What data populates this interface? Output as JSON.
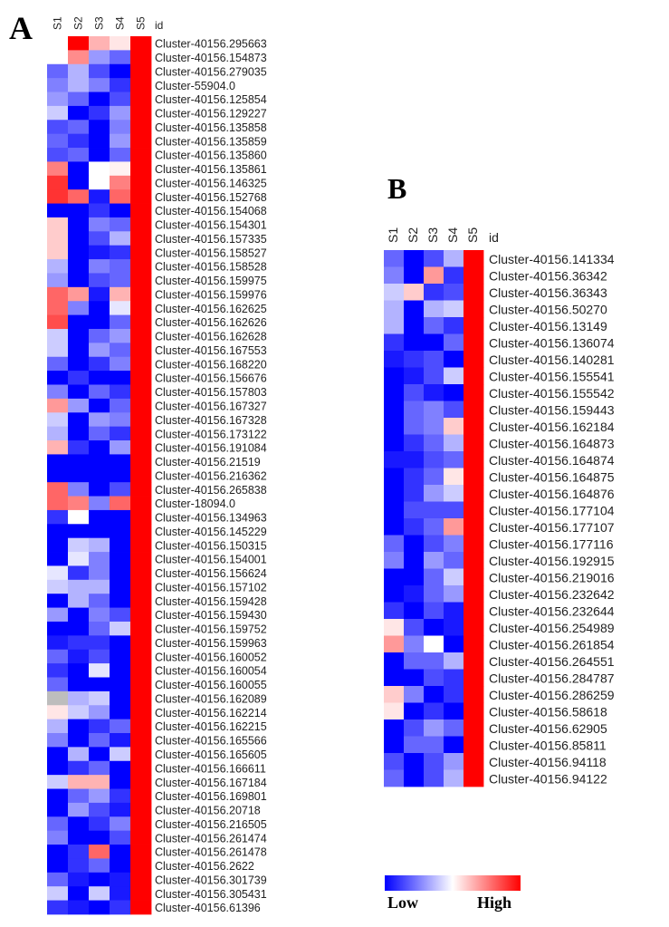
{
  "panels": [
    {
      "letter": "A",
      "columns": [
        "S1",
        "S2",
        "S3",
        "S4",
        "S5"
      ],
      "id_header": "id",
      "rows": [
        {
          "id": "Cluster-40156.295663",
          "values": [
            0.0,
            1.0,
            0.3,
            0.1,
            1.0
          ]
        },
        {
          "id": "Cluster-40156.154873",
          "values": [
            0.0,
            0.45,
            -0.4,
            -0.6,
            1.0
          ]
        },
        {
          "id": "Cluster-40156.279035",
          "values": [
            -0.6,
            -0.3,
            -0.7,
            -1.0,
            1.0
          ]
        },
        {
          "id": "Cluster-55904.0",
          "values": [
            -0.5,
            -0.3,
            -0.5,
            -0.8,
            1.0
          ]
        },
        {
          "id": "Cluster-40156.125854",
          "values": [
            -0.4,
            -0.6,
            -1.0,
            -0.7,
            1.0
          ]
        },
        {
          "id": "Cluster-40156.129227",
          "values": [
            -0.2,
            -1.0,
            -0.8,
            -0.4,
            1.0
          ]
        },
        {
          "id": "Cluster-40156.135858",
          "values": [
            -0.7,
            -0.6,
            -1.0,
            -0.5,
            1.0
          ]
        },
        {
          "id": "Cluster-40156.135859",
          "values": [
            -0.6,
            -0.8,
            -1.0,
            -0.4,
            1.0
          ]
        },
        {
          "id": "Cluster-40156.135860",
          "values": [
            -0.7,
            -0.6,
            -1.0,
            -0.6,
            1.0
          ]
        },
        {
          "id": "Cluster-40156.135861",
          "values": [
            0.5,
            -1.0,
            0.0,
            0.05,
            1.0
          ]
        },
        {
          "id": "Cluster-40156.146325",
          "values": [
            0.8,
            -1.0,
            0.0,
            0.5,
            1.0
          ]
        },
        {
          "id": "Cluster-40156.152768",
          "values": [
            0.8,
            0.6,
            -0.9,
            0.6,
            1.0
          ]
        },
        {
          "id": "Cluster-40156.154068",
          "values": [
            -1.0,
            -1.0,
            -0.8,
            -1.0,
            1.0
          ]
        },
        {
          "id": "Cluster-40156.154301",
          "values": [
            0.2,
            -1.0,
            -0.5,
            -0.6,
            1.0
          ]
        },
        {
          "id": "Cluster-40156.157335",
          "values": [
            0.2,
            -1.0,
            -0.7,
            -0.3,
            1.0
          ]
        },
        {
          "id": "Cluster-40156.158527",
          "values": [
            0.2,
            -1.0,
            -0.9,
            -0.8,
            1.0
          ]
        },
        {
          "id": "Cluster-40156.158528",
          "values": [
            -0.3,
            -1.0,
            -0.5,
            -0.6,
            1.0
          ]
        },
        {
          "id": "Cluster-40156.159975",
          "values": [
            -0.4,
            -1.0,
            -0.7,
            -0.6,
            1.0
          ]
        },
        {
          "id": "Cluster-40156.159976",
          "values": [
            0.6,
            0.4,
            -0.9,
            0.3,
            1.0
          ]
        },
        {
          "id": "Cluster-40156.162625",
          "values": [
            0.6,
            -0.5,
            -1.0,
            -0.1,
            1.0
          ]
        },
        {
          "id": "Cluster-40156.162626",
          "values": [
            0.7,
            -1.0,
            -1.0,
            -0.6,
            1.0
          ]
        },
        {
          "id": "Cluster-40156.162628",
          "values": [
            -0.2,
            -1.0,
            -0.6,
            -0.4,
            1.0
          ]
        },
        {
          "id": "Cluster-40156.167553",
          "values": [
            -0.2,
            -1.0,
            -0.4,
            -0.6,
            1.0
          ]
        },
        {
          "id": "Cluster-40156.168220",
          "values": [
            -0.6,
            -1.0,
            -0.8,
            -0.5,
            1.0
          ]
        },
        {
          "id": "Cluster-40156.156676",
          "values": [
            -1.0,
            -0.8,
            -1.0,
            -1.0,
            1.0
          ]
        },
        {
          "id": "Cluster-40156.157803",
          "values": [
            -0.5,
            -1.0,
            -0.6,
            -0.8,
            1.0
          ]
        },
        {
          "id": "Cluster-40156.167327",
          "values": [
            0.4,
            -0.4,
            -1.0,
            -0.6,
            1.0
          ]
        },
        {
          "id": "Cluster-40156.167328",
          "values": [
            -0.2,
            -1.0,
            -0.4,
            -0.5,
            1.0
          ]
        },
        {
          "id": "Cluster-40156.173122",
          "values": [
            -0.3,
            -1.0,
            -0.6,
            -0.8,
            1.0
          ]
        },
        {
          "id": "Cluster-40156.191084",
          "values": [
            0.3,
            -0.8,
            -1.0,
            -0.4,
            1.0
          ]
        },
        {
          "id": "Cluster-40156.21519",
          "values": [
            -1.0,
            -1.0,
            -1.0,
            -1.0,
            1.0
          ]
        },
        {
          "id": "Cluster-40156.216362",
          "values": [
            -1.0,
            -1.0,
            -1.0,
            -1.0,
            1.0
          ]
        },
        {
          "id": "Cluster-40156.265838",
          "values": [
            0.6,
            -0.5,
            -1.0,
            -0.7,
            1.0
          ]
        },
        {
          "id": "Cluster-18094.0",
          "values": [
            0.6,
            0.5,
            -0.5,
            0.6,
            1.0
          ]
        },
        {
          "id": "Cluster-40156.134963",
          "values": [
            -0.8,
            0.0,
            -1.0,
            -1.0,
            1.0
          ]
        },
        {
          "id": "Cluster-40156.145229",
          "values": [
            -1.0,
            -1.0,
            -1.0,
            -1.0,
            1.0
          ]
        },
        {
          "id": "Cluster-40156.150315",
          "values": [
            -1.0,
            -0.2,
            -0.3,
            -1.0,
            1.0
          ]
        },
        {
          "id": "Cluster-40156.154001",
          "values": [
            -1.0,
            -0.1,
            -0.5,
            -1.0,
            1.0
          ]
        },
        {
          "id": "Cluster-40156.156624",
          "values": [
            -0.1,
            -0.8,
            -0.5,
            -1.0,
            1.0
          ]
        },
        {
          "id": "Cluster-40156.157102",
          "values": [
            -0.2,
            -0.3,
            -0.3,
            -1.0,
            1.0
          ]
        },
        {
          "id": "Cluster-40156.159428",
          "values": [
            -1.0,
            -0.3,
            -0.6,
            -1.0,
            1.0
          ]
        },
        {
          "id": "Cluster-40156.159430",
          "values": [
            -0.4,
            -1.0,
            -0.5,
            -0.7,
            1.0
          ]
        },
        {
          "id": "Cluster-40156.159752",
          "values": [
            -1.0,
            -1.0,
            -0.6,
            -0.2,
            1.0
          ]
        },
        {
          "id": "Cluster-40156.159963",
          "values": [
            -0.9,
            -0.8,
            -0.8,
            -1.0,
            1.0
          ]
        },
        {
          "id": "Cluster-40156.160052",
          "values": [
            -0.6,
            -0.9,
            -0.7,
            -1.0,
            1.0
          ]
        },
        {
          "id": "Cluster-40156.160054",
          "values": [
            -0.8,
            -1.0,
            -0.1,
            -1.0,
            1.0
          ]
        },
        {
          "id": "Cluster-40156.160055",
          "values": [
            -0.6,
            -1.0,
            -1.0,
            -1.0,
            1.0
          ]
        },
        {
          "id": "Cluster-40156.162089",
          "values": [
            null,
            -0.3,
            -0.2,
            -1.0,
            1.0
          ]
        },
        {
          "id": "Cluster-40156.162214",
          "values": [
            0.1,
            -0.2,
            -0.4,
            -1.0,
            1.0
          ]
        },
        {
          "id": "Cluster-40156.162215",
          "values": [
            -0.3,
            -1.0,
            -0.8,
            -0.6,
            1.0
          ]
        },
        {
          "id": "Cluster-40156.165566",
          "values": [
            -0.5,
            -1.0,
            -0.6,
            -0.9,
            1.0
          ]
        },
        {
          "id": "Cluster-40156.165605",
          "values": [
            -1.0,
            -0.3,
            -1.0,
            -0.2,
            1.0
          ]
        },
        {
          "id": "Cluster-40156.166611",
          "values": [
            -1.0,
            -0.8,
            -0.6,
            -1.0,
            1.0
          ]
        },
        {
          "id": "Cluster-40156.167184",
          "values": [
            -0.2,
            0.3,
            0.3,
            -1.0,
            1.0
          ]
        },
        {
          "id": "Cluster-40156.169801",
          "values": [
            -1.0,
            -0.6,
            -0.4,
            -0.8,
            1.0
          ]
        },
        {
          "id": "Cluster-40156.20718",
          "values": [
            -1.0,
            -0.4,
            -0.7,
            -0.9,
            1.0
          ]
        },
        {
          "id": "Cluster-40156.216505",
          "values": [
            -0.6,
            -1.0,
            -0.8,
            -0.5,
            1.0
          ]
        },
        {
          "id": "Cluster-40156.261474",
          "values": [
            -0.5,
            -1.0,
            -1.0,
            -0.7,
            1.0
          ]
        },
        {
          "id": "Cluster-40156.261478",
          "values": [
            -1.0,
            -0.8,
            0.6,
            -1.0,
            1.0
          ]
        },
        {
          "id": "Cluster-40156.2622",
          "values": [
            -1.0,
            -0.8,
            -0.6,
            -1.0,
            1.0
          ]
        },
        {
          "id": "Cluster-40156.301739",
          "values": [
            -0.6,
            -0.9,
            -1.0,
            -0.9,
            1.0
          ]
        },
        {
          "id": "Cluster-40156.305431",
          "values": [
            -0.2,
            -1.0,
            -0.2,
            -0.9,
            1.0
          ]
        },
        {
          "id": "Cluster-40156.61396",
          "values": [
            -0.8,
            -0.9,
            -1.0,
            -0.8,
            1.0
          ]
        }
      ]
    },
    {
      "letter": "B",
      "columns": [
        "S1",
        "S2",
        "S3",
        "S4",
        "S5"
      ],
      "id_header": "id",
      "rows": [
        {
          "id": "Cluster-40156.141334",
          "values": [
            -0.6,
            -1.0,
            -0.7,
            -0.3,
            1.0
          ]
        },
        {
          "id": "Cluster-40156.36342",
          "values": [
            -0.5,
            -1.0,
            0.4,
            -0.8,
            1.0
          ]
        },
        {
          "id": "Cluster-40156.36343",
          "values": [
            -0.2,
            0.2,
            -0.8,
            -0.7,
            1.0
          ]
        },
        {
          "id": "Cluster-40156.50270",
          "values": [
            -0.3,
            -1.0,
            -0.3,
            -0.2,
            1.0
          ]
        },
        {
          "id": "Cluster-40156.13149",
          "values": [
            -0.3,
            -1.0,
            -0.6,
            -0.8,
            1.0
          ]
        },
        {
          "id": "Cluster-40156.136074",
          "values": [
            -0.8,
            -1.0,
            -1.0,
            -0.6,
            1.0
          ]
        },
        {
          "id": "Cluster-40156.140281",
          "values": [
            -0.9,
            -0.8,
            -0.7,
            -1.0,
            1.0
          ]
        },
        {
          "id": "Cluster-40156.155541",
          "values": [
            -1.0,
            -0.9,
            -0.7,
            -0.2,
            1.0
          ]
        },
        {
          "id": "Cluster-40156.155542",
          "values": [
            -1.0,
            -0.7,
            -0.9,
            -1.0,
            1.0
          ]
        },
        {
          "id": "Cluster-40156.159443",
          "values": [
            -1.0,
            -0.6,
            -0.5,
            -0.7,
            1.0
          ]
        },
        {
          "id": "Cluster-40156.162184",
          "values": [
            -1.0,
            -0.6,
            -0.5,
            0.2,
            1.0
          ]
        },
        {
          "id": "Cluster-40156.164873",
          "values": [
            -1.0,
            -0.8,
            -0.6,
            -0.3,
            1.0
          ]
        },
        {
          "id": "Cluster-40156.164874",
          "values": [
            -0.9,
            -0.9,
            -0.7,
            -0.6,
            1.0
          ]
        },
        {
          "id": "Cluster-40156.164875",
          "values": [
            -1.0,
            -0.8,
            -0.6,
            0.1,
            1.0
          ]
        },
        {
          "id": "Cluster-40156.164876",
          "values": [
            -1.0,
            -0.8,
            -0.4,
            -0.2,
            1.0
          ]
        },
        {
          "id": "Cluster-40156.177104",
          "values": [
            -1.0,
            -0.7,
            -0.7,
            -0.7,
            1.0
          ]
        },
        {
          "id": "Cluster-40156.177107",
          "values": [
            -1.0,
            -0.8,
            -0.6,
            0.4,
            1.0
          ]
        },
        {
          "id": "Cluster-40156.177116",
          "values": [
            -0.6,
            -1.0,
            -0.7,
            -0.5,
            1.0
          ]
        },
        {
          "id": "Cluster-40156.192915",
          "values": [
            -0.5,
            -1.0,
            -0.4,
            -0.6,
            1.0
          ]
        },
        {
          "id": "Cluster-40156.219016",
          "values": [
            -1.0,
            -1.0,
            -0.6,
            -0.2,
            1.0
          ]
        },
        {
          "id": "Cluster-40156.232642",
          "values": [
            -1.0,
            -0.9,
            -0.6,
            -0.4,
            1.0
          ]
        },
        {
          "id": "Cluster-40156.232644",
          "values": [
            -0.8,
            -1.0,
            -0.7,
            -0.9,
            1.0
          ]
        },
        {
          "id": "Cluster-40156.254989",
          "values": [
            0.1,
            -0.7,
            -1.0,
            -0.9,
            1.0
          ]
        },
        {
          "id": "Cluster-40156.261854",
          "values": [
            0.4,
            -0.5,
            0.0,
            -1.0,
            1.0
          ]
        },
        {
          "id": "Cluster-40156.264551",
          "values": [
            -1.0,
            -0.6,
            -0.6,
            -0.3,
            1.0
          ]
        },
        {
          "id": "Cluster-40156.284787",
          "values": [
            -1.0,
            -1.0,
            -0.7,
            -0.8,
            1.0
          ]
        },
        {
          "id": "Cluster-40156.286259",
          "values": [
            0.2,
            -0.5,
            -1.0,
            -0.8,
            1.0
          ]
        },
        {
          "id": "Cluster-40156.58618",
          "values": [
            0.1,
            -1.0,
            -0.8,
            -1.0,
            1.0
          ]
        },
        {
          "id": "Cluster-40156.62905",
          "values": [
            -1.0,
            -0.7,
            -0.4,
            -0.6,
            1.0
          ]
        },
        {
          "id": "Cluster-40156.85811",
          "values": [
            -1.0,
            -0.6,
            -0.6,
            -1.0,
            1.0
          ]
        },
        {
          "id": "Cluster-40156.94118",
          "values": [
            -0.7,
            -1.0,
            -0.7,
            -0.4,
            1.0
          ]
        },
        {
          "id": "Cluster-40156.94122",
          "values": [
            -0.6,
            -1.0,
            -0.7,
            -0.3,
            1.0
          ]
        }
      ]
    }
  ],
  "colors": {
    "low": "#0000ff",
    "mid": "#ffffff",
    "high": "#ff0000",
    "missing": "#bdbdbd"
  },
  "scale": {
    "low_label": "Low",
    "high_label": "High"
  },
  "chart_data": [
    {
      "type": "heatmap",
      "panel": "A",
      "x_categories": [
        "S1",
        "S2",
        "S3",
        "S4",
        "S5"
      ],
      "y_header": "id",
      "value_range": [
        -1,
        1
      ],
      "note_source": "panels.0.rows"
    },
    {
      "type": "heatmap",
      "panel": "B",
      "x_categories": [
        "S1",
        "S2",
        "S3",
        "S4",
        "S5"
      ],
      "y_header": "id",
      "value_range": [
        -1,
        1
      ],
      "note_source": "panels.1.rows"
    }
  ]
}
